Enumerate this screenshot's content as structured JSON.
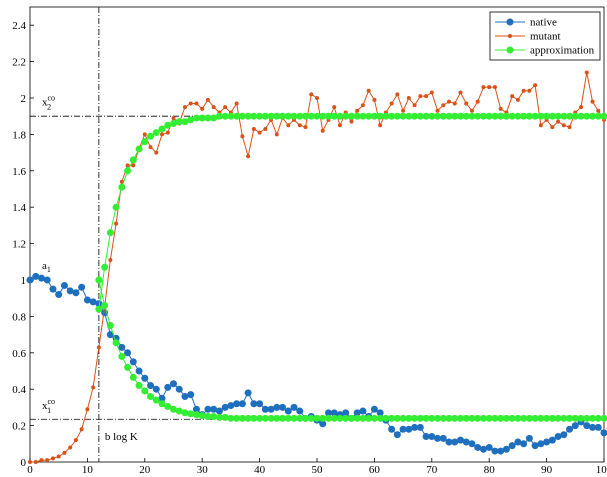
{
  "chart_data": {
    "type": "line",
    "x": [
      0,
      1,
      2,
      3,
      4,
      5,
      6,
      7,
      8,
      9,
      10,
      11,
      12,
      13,
      14,
      15,
      16,
      17,
      18,
      19,
      20,
      21,
      22,
      23,
      24,
      25,
      26,
      27,
      28,
      29,
      30,
      31,
      32,
      33,
      34,
      35,
      36,
      37,
      38,
      39,
      40,
      41,
      42,
      43,
      44,
      45,
      46,
      47,
      48,
      49,
      50,
      51,
      52,
      53,
      54,
      55,
      56,
      57,
      58,
      59,
      60,
      61,
      62,
      63,
      64,
      65,
      66,
      67,
      68,
      69,
      70,
      71,
      72,
      73,
      74,
      75,
      76,
      77,
      78,
      79,
      80,
      81,
      82,
      83,
      84,
      85,
      86,
      87,
      88,
      89,
      90,
      91,
      92,
      93,
      94,
      95,
      96,
      97,
      98,
      99,
      100
    ],
    "series": [
      {
        "name": "native",
        "color": "#1f6fbf",
        "marker": 3.5,
        "values": [
          1.0,
          1.02,
          1.01,
          1.0,
          0.95,
          0.92,
          0.97,
          0.94,
          0.93,
          0.96,
          0.89,
          0.88,
          0.87,
          0.82,
          0.7,
          0.68,
          0.63,
          0.6,
          0.55,
          0.5,
          0.46,
          0.42,
          0.4,
          0.35,
          0.41,
          0.43,
          0.4,
          0.36,
          0.37,
          0.29,
          0.26,
          0.29,
          0.29,
          0.28,
          0.3,
          0.31,
          0.32,
          0.32,
          0.38,
          0.32,
          0.32,
          0.29,
          0.29,
          0.3,
          0.3,
          0.28,
          0.3,
          0.28,
          0.24,
          0.25,
          0.23,
          0.21,
          0.27,
          0.27,
          0.26,
          0.27,
          0.24,
          0.27,
          0.28,
          0.25,
          0.29,
          0.27,
          0.23,
          0.18,
          0.15,
          0.18,
          0.18,
          0.19,
          0.19,
          0.14,
          0.14,
          0.13,
          0.13,
          0.11,
          0.11,
          0.12,
          0.11,
          0.1,
          0.08,
          0.07,
          0.08,
          0.06,
          0.06,
          0.07,
          0.09,
          0.11,
          0.1,
          0.13,
          0.09,
          0.1,
          0.11,
          0.12,
          0.14,
          0.15,
          0.18,
          0.2,
          0.22,
          0.2,
          0.19,
          0.19,
          0.16
        ]
      },
      {
        "name": "mutant",
        "color": "#d95319",
        "marker": 2,
        "values": [
          0,
          0,
          0.01,
          0.01,
          0.02,
          0.03,
          0.05,
          0.08,
          0.12,
          0.18,
          0.29,
          0.41,
          0.63,
          0.85,
          1.11,
          1.31,
          1.54,
          1.63,
          1.63,
          1.72,
          1.8,
          1.73,
          1.7,
          1.8,
          1.81,
          1.89,
          1.86,
          1.95,
          1.97,
          1.97,
          1.94,
          1.99,
          1.95,
          1.92,
          1.95,
          1.92,
          1.97,
          1.79,
          1.68,
          1.83,
          1.81,
          1.83,
          1.88,
          1.8,
          1.89,
          1.85,
          1.88,
          1.85,
          1.84,
          2.02,
          2.0,
          1.82,
          1.88,
          1.95,
          1.85,
          1.92,
          1.87,
          1.93,
          1.96,
          2.04,
          1.99,
          1.85,
          1.92,
          1.97,
          2.02,
          1.93,
          2.0,
          1.96,
          2.01,
          2.01,
          2.03,
          1.93,
          1.96,
          1.98,
          1.97,
          2.03,
          1.97,
          1.93,
          1.98,
          2.06,
          2.06,
          2.06,
          1.94,
          1.92,
          2.01,
          1.99,
          2.04,
          2.04,
          2.07,
          1.85,
          1.88,
          1.84,
          1.87,
          1.85,
          1.84,
          1.92,
          1.95,
          2.14,
          1.98,
          1.93,
          1.88
        ]
      },
      {
        "name": "approximation",
        "color": "#33ee33",
        "marker": 3.5,
        "values": [
          null,
          null,
          null,
          null,
          null,
          null,
          null,
          null,
          null,
          null,
          null,
          null,
          0.84,
          1.07,
          1.26,
          1.4,
          1.51,
          1.6,
          1.66,
          1.72,
          1.76,
          1.79,
          1.81,
          1.83,
          1.85,
          1.86,
          1.87,
          1.87,
          1.88,
          1.89,
          1.89,
          1.89,
          1.89,
          1.9,
          1.9,
          1.9,
          1.9,
          1.9,
          1.9,
          1.9,
          1.9,
          1.9,
          1.9,
          1.9,
          1.9,
          1.9,
          1.9,
          1.9,
          1.9,
          1.9,
          1.9,
          1.9,
          1.9,
          1.9,
          1.9,
          1.9,
          1.9,
          1.9,
          1.9,
          1.9,
          1.9,
          1.9,
          1.9,
          1.9,
          1.9,
          1.9,
          1.9,
          1.9,
          1.9,
          1.9,
          1.9,
          1.9,
          1.9,
          1.9,
          1.9,
          1.9,
          1.9,
          1.9,
          1.9,
          1.9,
          1.9,
          1.9,
          1.9,
          1.9,
          1.9,
          1.9,
          1.9,
          1.9,
          1.9,
          1.9,
          1.9,
          1.9,
          1.9,
          1.9,
          1.9,
          1.9,
          1.9,
          1.9,
          1.9,
          1.9,
          1.9
        ]
      },
      {
        "color": "#33ee33",
        "marker": 3.5,
        "values": [
          null,
          null,
          null,
          null,
          null,
          null,
          null,
          null,
          null,
          null,
          null,
          null,
          1.0,
          0.86,
          0.75,
          0.655,
          0.58,
          0.52,
          0.465,
          0.42,
          0.39,
          0.36,
          0.34,
          0.32,
          0.305,
          0.29,
          0.28,
          0.27,
          0.265,
          0.26,
          0.255,
          0.25,
          0.25,
          0.245,
          0.245,
          0.24,
          0.24,
          0.24,
          0.24,
          0.24,
          0.24,
          0.24,
          0.24,
          0.24,
          0.24,
          0.24,
          0.24,
          0.24,
          0.24,
          0.24,
          0.24,
          0.24,
          0.24,
          0.24,
          0.24,
          0.24,
          0.24,
          0.24,
          0.24,
          0.24,
          0.24,
          0.24,
          0.24,
          0.24,
          0.24,
          0.24,
          0.24,
          0.24,
          0.24,
          0.24,
          0.24,
          0.24,
          0.24,
          0.24,
          0.24,
          0.24,
          0.24,
          0.24,
          0.24,
          0.24,
          0.24,
          0.24,
          0.24,
          0.24,
          0.24,
          0.24,
          0.24,
          0.24,
          0.24,
          0.24,
          0.24,
          0.24,
          0.24,
          0.24,
          0.24,
          0.24,
          0.24,
          0.24,
          0.24,
          0.24,
          0.24
        ]
      }
    ],
    "reference_lines": {
      "x": [
        12
      ],
      "y": [
        1.9,
        0.235
      ]
    },
    "annotations": [
      {
        "text": "a",
        "sub": "1"
      },
      {
        "text": "x",
        "sub": "2",
        "sup": "co"
      },
      {
        "text": "x",
        "sub": "1",
        "sup": "co"
      },
      {
        "text": "b log K"
      }
    ],
    "xlim": [
      0,
      100
    ],
    "ylim": [
      0,
      2.5
    ],
    "xticks": [
      0,
      10,
      20,
      30,
      40,
      50,
      60,
      70,
      80,
      90,
      100
    ],
    "yticks": [
      0,
      0.2,
      0.4,
      0.6,
      0.8,
      1,
      1.2,
      1.4,
      1.6,
      1.8,
      2,
      2.2,
      2.4
    ],
    "legend": "upper right"
  }
}
